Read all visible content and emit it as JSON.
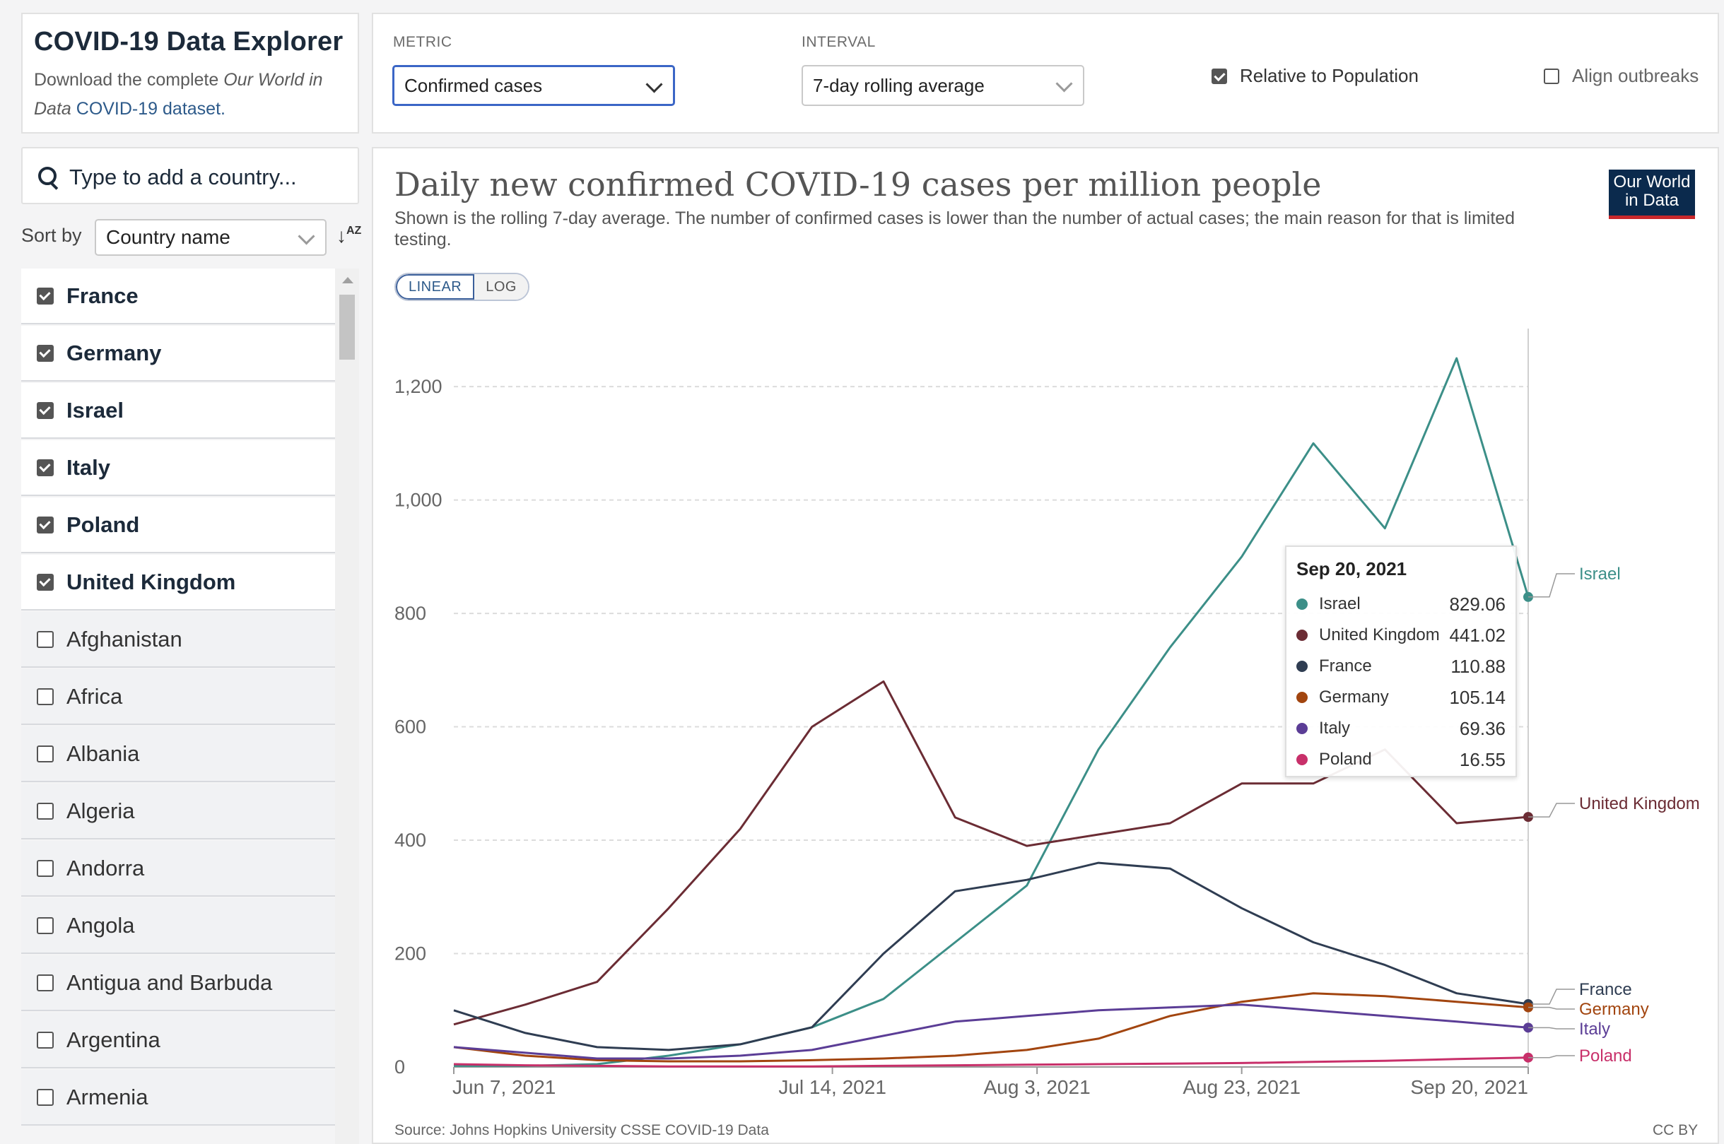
{
  "header": {
    "title": "COVID-19 Data Explorer",
    "desc_1": "Download the complete ",
    "desc_em": "Our World in Data",
    "desc_link": " COVID-19 dataset."
  },
  "controls": {
    "metric_label": "METRIC",
    "metric_value": "Confirmed cases",
    "interval_label": "INTERVAL",
    "interval_value": "7-day rolling average",
    "relative_label": "Relative to Population",
    "relative_checked": true,
    "align_label": "Align outbreaks",
    "align_checked": false
  },
  "search": {
    "placeholder": "Type to add a country..."
  },
  "sort": {
    "label": "Sort by",
    "value": "Country name"
  },
  "countries": [
    {
      "name": "France",
      "checked": true
    },
    {
      "name": "Germany",
      "checked": true
    },
    {
      "name": "Israel",
      "checked": true
    },
    {
      "name": "Italy",
      "checked": true
    },
    {
      "name": "Poland",
      "checked": true
    },
    {
      "name": "United Kingdom",
      "checked": true
    },
    {
      "name": "Afghanistan",
      "checked": false
    },
    {
      "name": "Africa",
      "checked": false
    },
    {
      "name": "Albania",
      "checked": false
    },
    {
      "name": "Algeria",
      "checked": false
    },
    {
      "name": "Andorra",
      "checked": false
    },
    {
      "name": "Angola",
      "checked": false
    },
    {
      "name": "Antigua and Barbuda",
      "checked": false
    },
    {
      "name": "Argentina",
      "checked": false
    },
    {
      "name": "Armenia",
      "checked": false
    }
  ],
  "chart": {
    "title": "Daily new confirmed COVID-19 cases per million people",
    "subtitle": "Shown is the rolling 7-day average. The number of confirmed cases is lower than the number of actual cases; the main reason for that is limited testing.",
    "logo_line1": "Our World",
    "logo_line2": "in Data",
    "scale_linear": "LINEAR",
    "scale_log": "LOG",
    "source": "Source: Johns Hopkins University CSSE COVID-19 Data",
    "license": "CC BY"
  },
  "tooltip": {
    "date": "Sep 20, 2021",
    "rows": [
      {
        "name": "Israel",
        "value": "829.06",
        "color": "#3c8f88"
      },
      {
        "name": "United Kingdom",
        "value": "441.02",
        "color": "#6b2c34"
      },
      {
        "name": "France",
        "value": "110.88",
        "color": "#2f3d52"
      },
      {
        "name": "Germany",
        "value": "105.14",
        "color": "#a2450f"
      },
      {
        "name": "Italy",
        "value": "69.36",
        "color": "#5b3d96"
      },
      {
        "name": "Poland",
        "value": "16.55",
        "color": "#c8306a"
      }
    ]
  },
  "chart_data": {
    "type": "line",
    "title": "Daily new confirmed COVID-19 cases per million people",
    "xlabel": "",
    "ylabel": "",
    "x": [
      "2021-06-07",
      "2021-06-14",
      "2021-06-21",
      "2021-06-28",
      "2021-07-05",
      "2021-07-12",
      "2021-07-19",
      "2021-07-26",
      "2021-08-02",
      "2021-08-09",
      "2021-08-16",
      "2021-08-23",
      "2021-08-30",
      "2021-09-06",
      "2021-09-13",
      "2021-09-20"
    ],
    "x_tick_labels": [
      "Jun 7, 2021",
      "Jul 14, 2021",
      "Aug 3, 2021",
      "Aug 23, 2021",
      "Sep 20, 2021"
    ],
    "x_tick_dates": [
      "2021-06-07",
      "2021-07-14",
      "2021-08-03",
      "2021-08-23",
      "2021-09-20"
    ],
    "y_ticks": [
      0,
      200,
      400,
      600,
      800,
      1000,
      1200
    ],
    "ylim": [
      0,
      1250
    ],
    "grid": true,
    "legend": "right-end-labels",
    "series": [
      {
        "name": "Israel",
        "color": "#3c8f88",
        "values": [
          2,
          2,
          5,
          20,
          40,
          70,
          120,
          220,
          320,
          560,
          740,
          900,
          1100,
          950,
          1250,
          829.06
        ]
      },
      {
        "name": "United Kingdom",
        "color": "#6b2c34",
        "values": [
          75,
          110,
          150,
          280,
          420,
          600,
          680,
          440,
          390,
          410,
          430,
          500,
          500,
          560,
          430,
          441.02
        ]
      },
      {
        "name": "France",
        "color": "#2f3d52",
        "values": [
          100,
          60,
          35,
          30,
          40,
          70,
          200,
          310,
          330,
          360,
          350,
          280,
          220,
          180,
          130,
          110.88
        ]
      },
      {
        "name": "Germany",
        "color": "#a2450f",
        "values": [
          35,
          20,
          12,
          10,
          10,
          12,
          15,
          20,
          30,
          50,
          90,
          115,
          130,
          125,
          115,
          105.14
        ]
      },
      {
        "name": "Italy",
        "color": "#5b3d96",
        "values": [
          35,
          25,
          15,
          15,
          20,
          30,
          55,
          80,
          90,
          100,
          105,
          110,
          100,
          90,
          80,
          69.36
        ]
      },
      {
        "name": "Poland",
        "color": "#c8306a",
        "values": [
          5,
          3,
          2,
          1,
          1,
          1,
          2,
          3,
          4,
          5,
          6,
          7,
          9,
          11,
          14,
          16.55
        ]
      }
    ]
  }
}
